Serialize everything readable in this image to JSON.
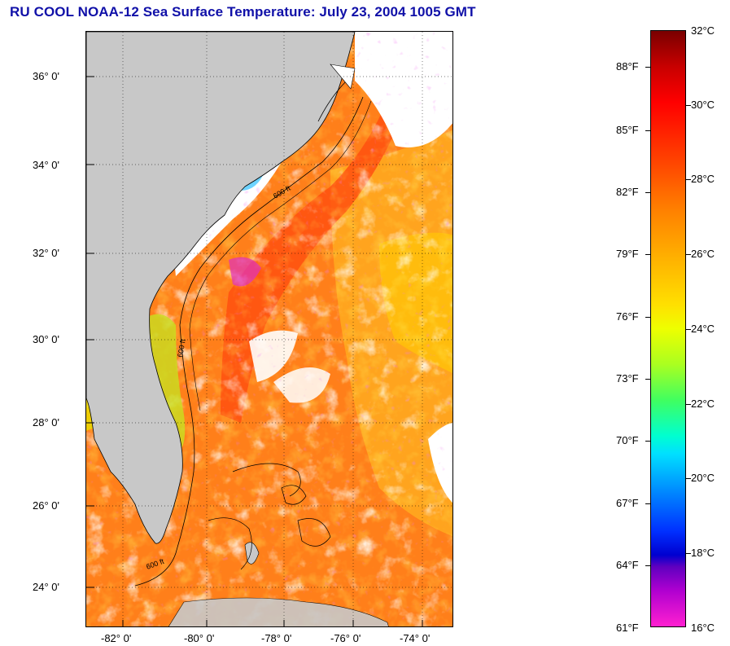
{
  "title": "RU COOL  NOAA-12  Sea Surface Temperature:  July 23, 2004 1005 GMT",
  "map": {
    "latitude_labels": [
      "36° 0'",
      "34° 0'",
      "32° 0'",
      "30° 0'",
      "28° 0'",
      "26° 0'",
      "24° 0'"
    ],
    "longitude_labels": [
      "-82° 0'",
      "-80° 0'",
      "-78° 0'",
      "-76° 0'",
      "-74° 0'"
    ],
    "isobath_label": "600 ft",
    "colors": {
      "land": "#c8c8c8",
      "cloud": "#ffffff",
      "sea_warm": "#ff7a1a",
      "sea_hot": "#ff5a10",
      "sea_cool": "#ffd000"
    }
  },
  "colorbar": {
    "fahrenheit_labels": [
      "88°F",
      "85°F",
      "82°F",
      "79°F",
      "76°F",
      "73°F",
      "70°F",
      "67°F",
      "64°F",
      "61°F"
    ],
    "celsius_labels": [
      "32°C",
      "30°C",
      "28°C",
      "26°C",
      "24°C",
      "22°C",
      "20°C",
      "18°C",
      "16°C"
    ]
  }
}
